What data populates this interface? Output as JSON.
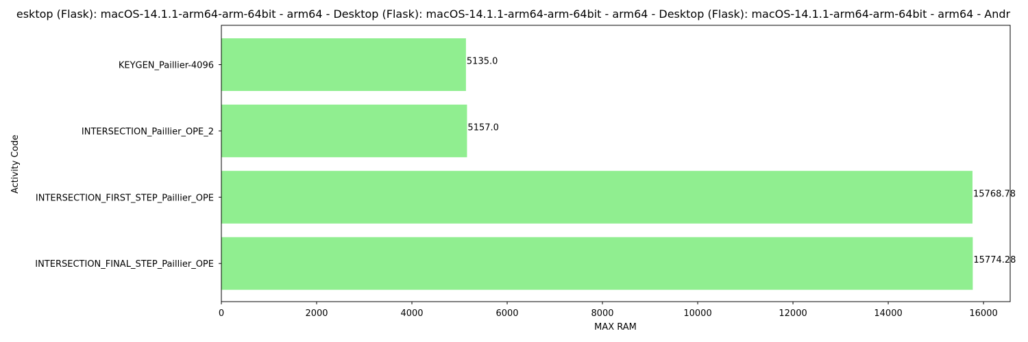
{
  "chart_data": {
    "type": "bar",
    "orientation": "horizontal",
    "title": "esktop (Flask): macOS-14.1.1-arm64-arm-64bit - arm64 - Desktop (Flask): macOS-14.1.1-arm64-arm-64bit - arm64 - Desktop (Flask): macOS-14.1.1-arm64-arm-64bit - arm64 - Andr",
    "xlabel": "MAX RAM",
    "ylabel": "Activity Code",
    "categories": [
      "KEYGEN_Paillier-4096",
      "INTERSECTION_Paillier_OPE_2",
      "INTERSECTION_FIRST_STEP_Paillier_OPE",
      "INTERSECTION_FINAL_STEP_Paillier_OPE"
    ],
    "values": [
      5135.0,
      5157.0,
      15768.78,
      15774.28
    ],
    "value_labels": [
      "5135.0",
      "5157.0",
      "15768.78",
      "15774.28"
    ],
    "xlim": [
      0,
      16560
    ],
    "xticks": [
      0,
      2000,
      4000,
      6000,
      8000,
      10000,
      12000,
      14000,
      16000
    ],
    "xtick_labels": [
      "0",
      "2000",
      "4000",
      "6000",
      "8000",
      "10000",
      "12000",
      "14000",
      "16000"
    ],
    "grid": false,
    "bar_color": "#90ee90"
  }
}
